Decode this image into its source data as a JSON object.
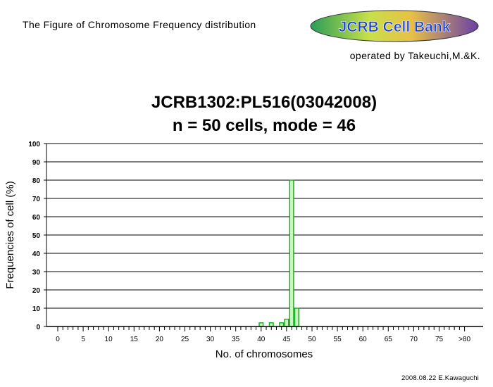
{
  "header": {
    "title": "The Figure of Chromosome Frequency distribution",
    "operator": "operated by Takeuchi,M.&K.",
    "logo_text": "JCRB Cell Bank"
  },
  "footer": {
    "credit": "2008.08.22 E.Kawaguchi"
  },
  "colors": {
    "bar_fill": "#ccf5c4",
    "bar_stroke": "#16a820",
    "grid": "#000000"
  },
  "chart_data": {
    "type": "bar",
    "title": "JCRB1302:PL516(03042008)",
    "subtitle": "n = 50 cells, mode = 46",
    "xlabel": "No. of chromosomes",
    "ylabel": "Frequencies of cell (%)",
    "ylim": [
      0,
      100
    ],
    "yticks": [
      0,
      10,
      20,
      30,
      40,
      50,
      60,
      70,
      80,
      90,
      100
    ],
    "xlim": [
      0,
      80
    ],
    "xtick_labels": [
      "0",
      "5",
      "10",
      "15",
      "20",
      "25",
      "30",
      "35",
      "40",
      "45",
      "50",
      "55",
      "60",
      "65",
      "70",
      "75",
      ">80"
    ],
    "grid": "horizontal",
    "x": [
      40,
      42,
      44,
      45,
      46,
      47
    ],
    "values": [
      2,
      2,
      2,
      4,
      80,
      10
    ]
  }
}
